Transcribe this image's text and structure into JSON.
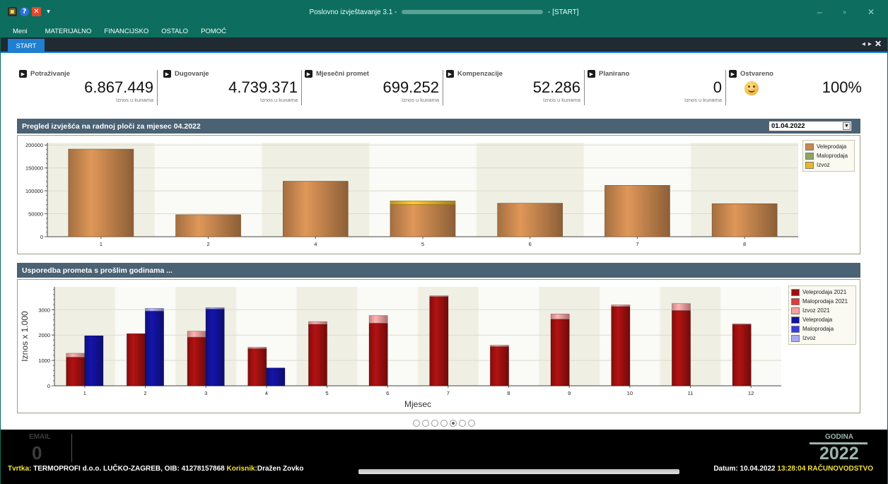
{
  "window": {
    "title_prefix": "Poslovno izvještavanje 3.1 -",
    "title_suffix": "- [START]",
    "controls": {
      "minimize": "–",
      "restore": "▫",
      "close": "✕"
    }
  },
  "menu": [
    "Meni",
    "MATERIJALNO",
    "FINANCIJSKO",
    "OSTALO",
    "POMOĆ"
  ],
  "tabs": {
    "active": "START"
  },
  "kpis": [
    {
      "title": "Potraživanje",
      "value": "6.867.449",
      "sub": "Iznos u kunama"
    },
    {
      "title": "Dugovanje",
      "value": "4.739.371",
      "sub": "Iznos u kunama"
    },
    {
      "title": "Mjesečni promet",
      "value": "699.252",
      "sub": "Iznos u kunama"
    },
    {
      "title": "Kompenzacije",
      "value": "52.286",
      "sub": "Iznos u kunama"
    },
    {
      "title": "Planirano",
      "value": "0",
      "sub": "Iznos u kunama"
    },
    {
      "title": "Ostvareno",
      "value": "100%",
      "sub": ""
    }
  ],
  "panel1": {
    "title": "Pregled izvješća na radnoj ploči za mjesec 04.2022",
    "date_value": "01.04.2022"
  },
  "panel2": {
    "title": "Usporedba prometa s prošlim godinama ..."
  },
  "chart_data": [
    {
      "type": "bar",
      "stacked": true,
      "categories": [
        "1",
        "2",
        "4",
        "5",
        "6",
        "7",
        "8"
      ],
      "series": [
        {
          "name": "Veleprodaja",
          "color": "#c8874f",
          "values": [
            191000,
            48000,
            121000,
            70000,
            73000,
            112000,
            72000
          ]
        },
        {
          "name": "Maloprodaja",
          "color": "#8fa562",
          "values": [
            0,
            0,
            0,
            0,
            0,
            0,
            0
          ]
        },
        {
          "name": "Izvoz",
          "color": "#eab62a",
          "values": [
            0,
            0,
            0,
            8000,
            0,
            0,
            0
          ]
        }
      ],
      "yticks": [
        "0",
        "50000",
        "100000",
        "150000",
        "200000"
      ],
      "ylim": [
        0,
        205000
      ],
      "legend": "top-right",
      "grid": true
    },
    {
      "type": "bar",
      "stacked": true,
      "grouped": true,
      "categories": [
        "1",
        "2",
        "3",
        "4",
        "5",
        "6",
        "7",
        "8",
        "9",
        "10",
        "11",
        "12"
      ],
      "series": [
        {
          "name": "Veleprodaja 2021",
          "group": "2021",
          "color": "#a01010",
          "values": [
            1130,
            2050,
            1920,
            1470,
            2430,
            2470,
            3520,
            1550,
            2630,
            3130,
            2970,
            2420
          ]
        },
        {
          "name": "Maloprodaja 2021",
          "group": "2021",
          "color": "#e03a3a",
          "values": [
            0,
            0,
            0,
            0,
            0,
            0,
            0,
            0,
            0,
            0,
            0,
            0
          ]
        },
        {
          "name": "Izvoz 2021",
          "group": "2021",
          "color": "#f7a0a0",
          "values": [
            150,
            0,
            230,
            50,
            100,
            300,
            30,
            50,
            200,
            60,
            270,
            20
          ]
        },
        {
          "name": "Veleprodaja",
          "group": "2022",
          "color": "#12129a",
          "values": [
            1970,
            2950,
            3030,
            700,
            0,
            0,
            0,
            0,
            0,
            0,
            0,
            0
          ]
        },
        {
          "name": "Maloprodaja",
          "group": "2022",
          "color": "#3a3ae0",
          "values": [
            0,
            0,
            0,
            0,
            0,
            0,
            0,
            0,
            0,
            0,
            0,
            0
          ]
        },
        {
          "name": "Izvoz",
          "group": "2022",
          "color": "#a8a8f2",
          "values": [
            0,
            100,
            50,
            0,
            0,
            0,
            0,
            0,
            0,
            0,
            0,
            0
          ]
        }
      ],
      "yticks": [
        "0",
        "1000",
        "2000",
        "3000"
      ],
      "ylim": [
        0,
        3900
      ],
      "ylabel": "Iznos x 1.000",
      "xlabel": "Mjesec",
      "legend": "top-right",
      "grid": true
    }
  ],
  "status": {
    "email_label": "EMAIL",
    "email_count": "0",
    "godina_label": "GODINA",
    "godina_value": "2022",
    "firma_label": "Tvrtka:",
    "firma_value": "TERMOPROFI d.o.o. LUČKO-ZAGREB, OIB: 41278157868",
    "korisnik_label": "Korisnik:",
    "korisnik_value": "Dražen Zovko",
    "datum_label": "Datum:",
    "datum_value": "10.04.2022",
    "time_value": "13:28:04",
    "module_value": "RAČUNOVODSTVO"
  },
  "pager": {
    "count": 7,
    "active_index": 4
  }
}
